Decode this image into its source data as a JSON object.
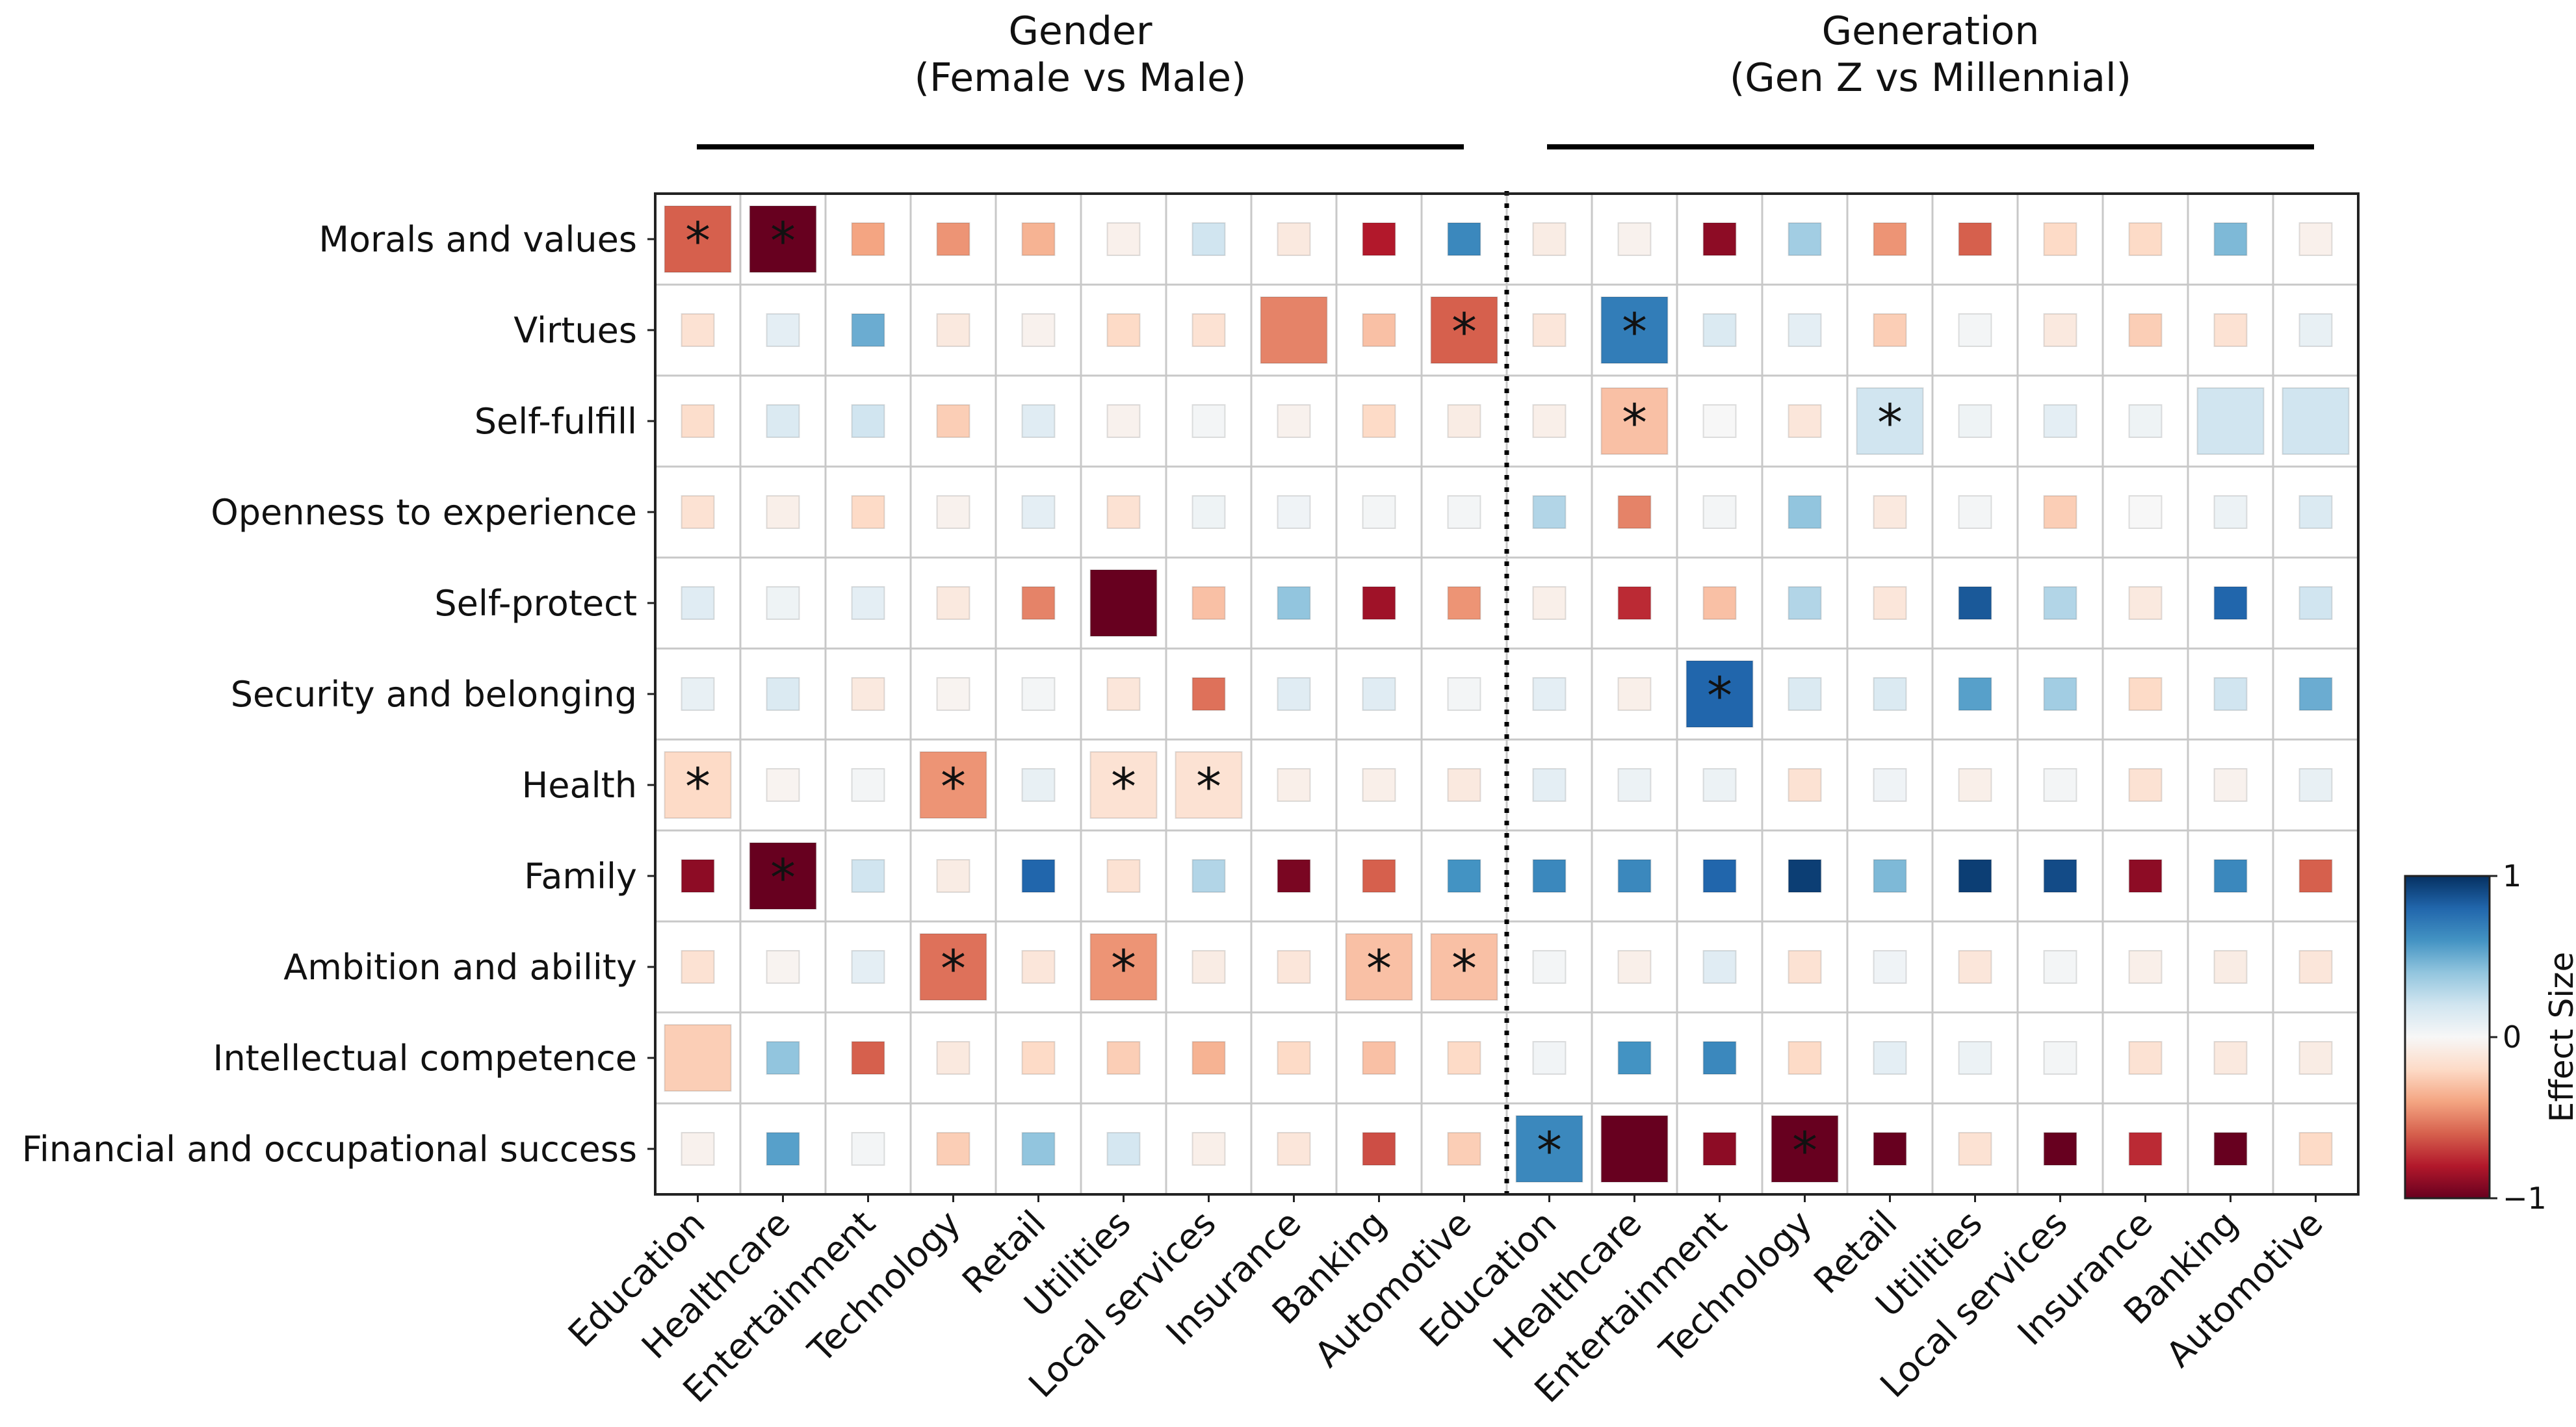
{
  "chart_data": {
    "type": "heatmap",
    "groups": [
      {
        "title_line1": "Gender",
        "title_line2": "(Female vs Male)"
      },
      {
        "title_line1": "Generation",
        "title_line2": "(Gen Z vs Millennial)"
      }
    ],
    "rows": [
      "Morals and values",
      "Virtues",
      "Self-fulfill",
      "Openness to experience",
      "Self-protect",
      "Security and belonging",
      "Health",
      "Family",
      "Ambition and ability",
      "Intellectual competence",
      "Financial and occupational success"
    ],
    "columns": [
      "Education",
      "Healthcare",
      "Entertainment",
      "Technology",
      "Retail",
      "Utilities",
      "Local services",
      "Insurance",
      "Banking",
      "Automotive",
      "Education",
      "Healthcare",
      "Entertainment",
      "Technology",
      "Retail",
      "Utilities",
      "Local services",
      "Insurance",
      "Banking",
      "Automotive"
    ],
    "values": [
      [
        -0.6,
        -1.0,
        -0.4,
        -0.45,
        -0.35,
        -0.05,
        0.2,
        -0.1,
        -0.8,
        0.65,
        -0.08,
        -0.04,
        -0.9,
        0.35,
        -0.45,
        -0.6,
        -0.2,
        -0.2,
        0.45,
        -0.05
      ],
      [
        -0.15,
        0.1,
        0.5,
        -0.1,
        -0.04,
        -0.2,
        -0.15,
        -0.5,
        -0.3,
        -0.6,
        -0.12,
        0.7,
        0.15,
        0.1,
        -0.25,
        0.02,
        -0.1,
        -0.25,
        -0.15,
        0.08
      ],
      [
        -0.18,
        0.15,
        0.2,
        -0.25,
        0.12,
        -0.04,
        0.02,
        -0.04,
        -0.2,
        -0.08,
        -0.06,
        -0.3,
        0.0,
        -0.12,
        0.2,
        0.05,
        0.1,
        0.05,
        0.2,
        0.2
      ],
      [
        -0.15,
        -0.06,
        -0.2,
        -0.04,
        0.1,
        -0.15,
        0.05,
        0.04,
        0.02,
        0.02,
        0.3,
        -0.5,
        0.02,
        0.4,
        -0.1,
        0.02,
        -0.25,
        0.0,
        0.06,
        0.15
      ],
      [
        0.12,
        0.05,
        0.1,
        -0.1,
        -0.5,
        -1.0,
        -0.3,
        0.4,
        -0.85,
        -0.45,
        -0.06,
        -0.75,
        -0.3,
        0.3,
        -0.12,
        0.85,
        0.3,
        -0.1,
        0.8,
        0.2
      ],
      [
        0.08,
        0.15,
        -0.1,
        -0.03,
        0.02,
        -0.12,
        -0.55,
        0.12,
        0.12,
        0.02,
        0.1,
        -0.06,
        0.8,
        0.15,
        0.15,
        0.55,
        0.35,
        -0.2,
        0.2,
        0.5
      ],
      [
        -0.2,
        -0.03,
        0.02,
        -0.45,
        0.08,
        -0.15,
        -0.15,
        -0.06,
        -0.06,
        -0.1,
        0.1,
        0.06,
        0.06,
        -0.15,
        0.04,
        -0.06,
        0.02,
        -0.15,
        -0.04,
        0.08
      ],
      [
        -0.9,
        -1.0,
        0.2,
        -0.08,
        0.8,
        -0.15,
        0.3,
        -0.95,
        -0.6,
        0.6,
        0.65,
        0.65,
        0.8,
        0.95,
        0.45,
        0.95,
        0.9,
        -0.9,
        0.65,
        -0.6
      ],
      [
        -0.15,
        -0.03,
        0.1,
        -0.55,
        -0.12,
        -0.45,
        -0.08,
        -0.12,
        -0.3,
        -0.3,
        0.02,
        -0.06,
        0.12,
        -0.15,
        0.04,
        -0.12,
        0.02,
        -0.06,
        -0.08,
        -0.12
      ],
      [
        -0.25,
        0.4,
        -0.6,
        -0.1,
        -0.2,
        -0.25,
        -0.35,
        -0.2,
        -0.3,
        -0.2,
        0.03,
        0.6,
        0.65,
        -0.2,
        0.1,
        0.06,
        0.02,
        -0.15,
        -0.1,
        -0.08
      ],
      [
        -0.04,
        0.55,
        0.02,
        -0.25,
        0.4,
        0.18,
        -0.06,
        -0.12,
        -0.65,
        -0.25,
        0.65,
        -1.0,
        -0.9,
        -1.0,
        -1.0,
        -0.15,
        -1.0,
        -0.75,
        -1.0,
        -0.2
      ]
    ],
    "magnitudes": [
      [
        1.0,
        1.0,
        0.5,
        0.5,
        0.5,
        0.5,
        0.5,
        0.5,
        0.5,
        0.5,
        0.5,
        0.5,
        0.5,
        0.5,
        0.5,
        0.5,
        0.5,
        0.5,
        0.5,
        0.5
      ],
      [
        0.5,
        0.5,
        0.5,
        0.5,
        0.5,
        0.5,
        0.5,
        1.0,
        0.5,
        1.0,
        0.5,
        1.0,
        0.5,
        0.5,
        0.5,
        0.5,
        0.5,
        0.5,
        0.5,
        0.5
      ],
      [
        0.5,
        0.5,
        0.5,
        0.5,
        0.5,
        0.5,
        0.5,
        0.5,
        0.5,
        0.5,
        0.5,
        1.0,
        0.5,
        0.5,
        1.0,
        0.5,
        0.5,
        0.5,
        1.0,
        1.0
      ],
      [
        0.5,
        0.5,
        0.5,
        0.5,
        0.5,
        0.5,
        0.5,
        0.5,
        0.5,
        0.5,
        0.5,
        0.5,
        0.5,
        0.5,
        0.5,
        0.5,
        0.5,
        0.5,
        0.5,
        0.5
      ],
      [
        0.5,
        0.5,
        0.5,
        0.5,
        0.5,
        1.0,
        0.5,
        0.5,
        0.5,
        0.5,
        0.5,
        0.5,
        0.5,
        0.5,
        0.5,
        0.5,
        0.5,
        0.5,
        0.5,
        0.5
      ],
      [
        0.5,
        0.5,
        0.5,
        0.5,
        0.5,
        0.5,
        0.5,
        0.5,
        0.5,
        0.5,
        0.5,
        0.5,
        1.0,
        0.5,
        0.5,
        0.5,
        0.5,
        0.5,
        0.5,
        0.5
      ],
      [
        1.0,
        0.5,
        0.5,
        1.0,
        0.5,
        1.0,
        1.0,
        0.5,
        0.5,
        0.5,
        0.5,
        0.5,
        0.5,
        0.5,
        0.5,
        0.5,
        0.5,
        0.5,
        0.5,
        0.5
      ],
      [
        0.5,
        1.0,
        0.5,
        0.5,
        0.5,
        0.5,
        0.5,
        0.5,
        0.5,
        0.5,
        0.5,
        0.5,
        0.5,
        0.5,
        0.5,
        0.5,
        0.5,
        0.5,
        0.5,
        0.5
      ],
      [
        0.5,
        0.5,
        0.5,
        1.0,
        0.5,
        1.0,
        0.5,
        0.5,
        1.0,
        1.0,
        0.5,
        0.5,
        0.5,
        0.5,
        0.5,
        0.5,
        0.5,
        0.5,
        0.5,
        0.5
      ],
      [
        1.0,
        0.5,
        0.5,
        0.5,
        0.5,
        0.5,
        0.5,
        0.5,
        0.5,
        0.5,
        0.5,
        0.5,
        0.5,
        0.5,
        0.5,
        0.5,
        0.5,
        0.5,
        0.5,
        0.5
      ],
      [
        0.5,
        0.5,
        0.5,
        0.5,
        0.5,
        0.5,
        0.5,
        0.5,
        0.5,
        0.5,
        1.0,
        1.0,
        0.5,
        1.0,
        0.5,
        0.5,
        0.5,
        0.5,
        0.5,
        0.5
      ]
    ],
    "significant": [
      [
        true,
        true,
        false,
        false,
        false,
        false,
        false,
        false,
        false,
        false,
        false,
        false,
        false,
        false,
        false,
        false,
        false,
        false,
        false,
        false
      ],
      [
        false,
        false,
        false,
        false,
        false,
        false,
        false,
        false,
        false,
        true,
        false,
        true,
        false,
        false,
        false,
        false,
        false,
        false,
        false,
        false
      ],
      [
        false,
        false,
        false,
        false,
        false,
        false,
        false,
        false,
        false,
        false,
        false,
        true,
        false,
        false,
        true,
        false,
        false,
        false,
        false,
        false
      ],
      [
        false,
        false,
        false,
        false,
        false,
        false,
        false,
        false,
        false,
        false,
        false,
        false,
        false,
        false,
        false,
        false,
        false,
        false,
        false,
        false
      ],
      [
        false,
        false,
        false,
        false,
        false,
        false,
        false,
        false,
        false,
        false,
        false,
        false,
        false,
        false,
        false,
        false,
        false,
        false,
        false,
        false
      ],
      [
        false,
        false,
        false,
        false,
        false,
        false,
        false,
        false,
        false,
        false,
        false,
        false,
        true,
        false,
        false,
        false,
        false,
        false,
        false,
        false
      ],
      [
        true,
        false,
        false,
        true,
        false,
        true,
        true,
        false,
        false,
        false,
        false,
        false,
        false,
        false,
        false,
        false,
        false,
        false,
        false,
        false
      ],
      [
        false,
        true,
        false,
        false,
        false,
        false,
        false,
        false,
        false,
        false,
        false,
        false,
        false,
        false,
        false,
        false,
        false,
        false,
        false,
        false
      ],
      [
        false,
        false,
        false,
        true,
        false,
        true,
        false,
        false,
        true,
        true,
        false,
        false,
        false,
        false,
        false,
        false,
        false,
        false,
        false,
        false
      ],
      [
        false,
        false,
        false,
        false,
        false,
        false,
        false,
        false,
        false,
        false,
        false,
        false,
        false,
        false,
        false,
        false,
        false,
        false,
        false,
        false
      ],
      [
        false,
        false,
        false,
        false,
        false,
        false,
        false,
        false,
        false,
        false,
        true,
        false,
        false,
        true,
        false,
        false,
        false,
        false,
        false,
        false
      ]
    ],
    "significance_marker": "*",
    "colorbar": {
      "label": "Effect Size",
      "range": [
        -1,
        1
      ],
      "ticks": [
        {
          "value": 1,
          "label": "1"
        },
        {
          "value": 0,
          "label": "0"
        },
        {
          "value": -1,
          "label": "−1"
        }
      ],
      "colormap": "RdBu",
      "colors": [
        "#67001f",
        "#b2182b",
        "#d6604d",
        "#f4a582",
        "#fddbc7",
        "#f7f7f7",
        "#d1e5f0",
        "#92c5de",
        "#4393c3",
        "#2166ac",
        "#053061"
      ]
    },
    "grid": true,
    "divider_after_column": 10
  }
}
